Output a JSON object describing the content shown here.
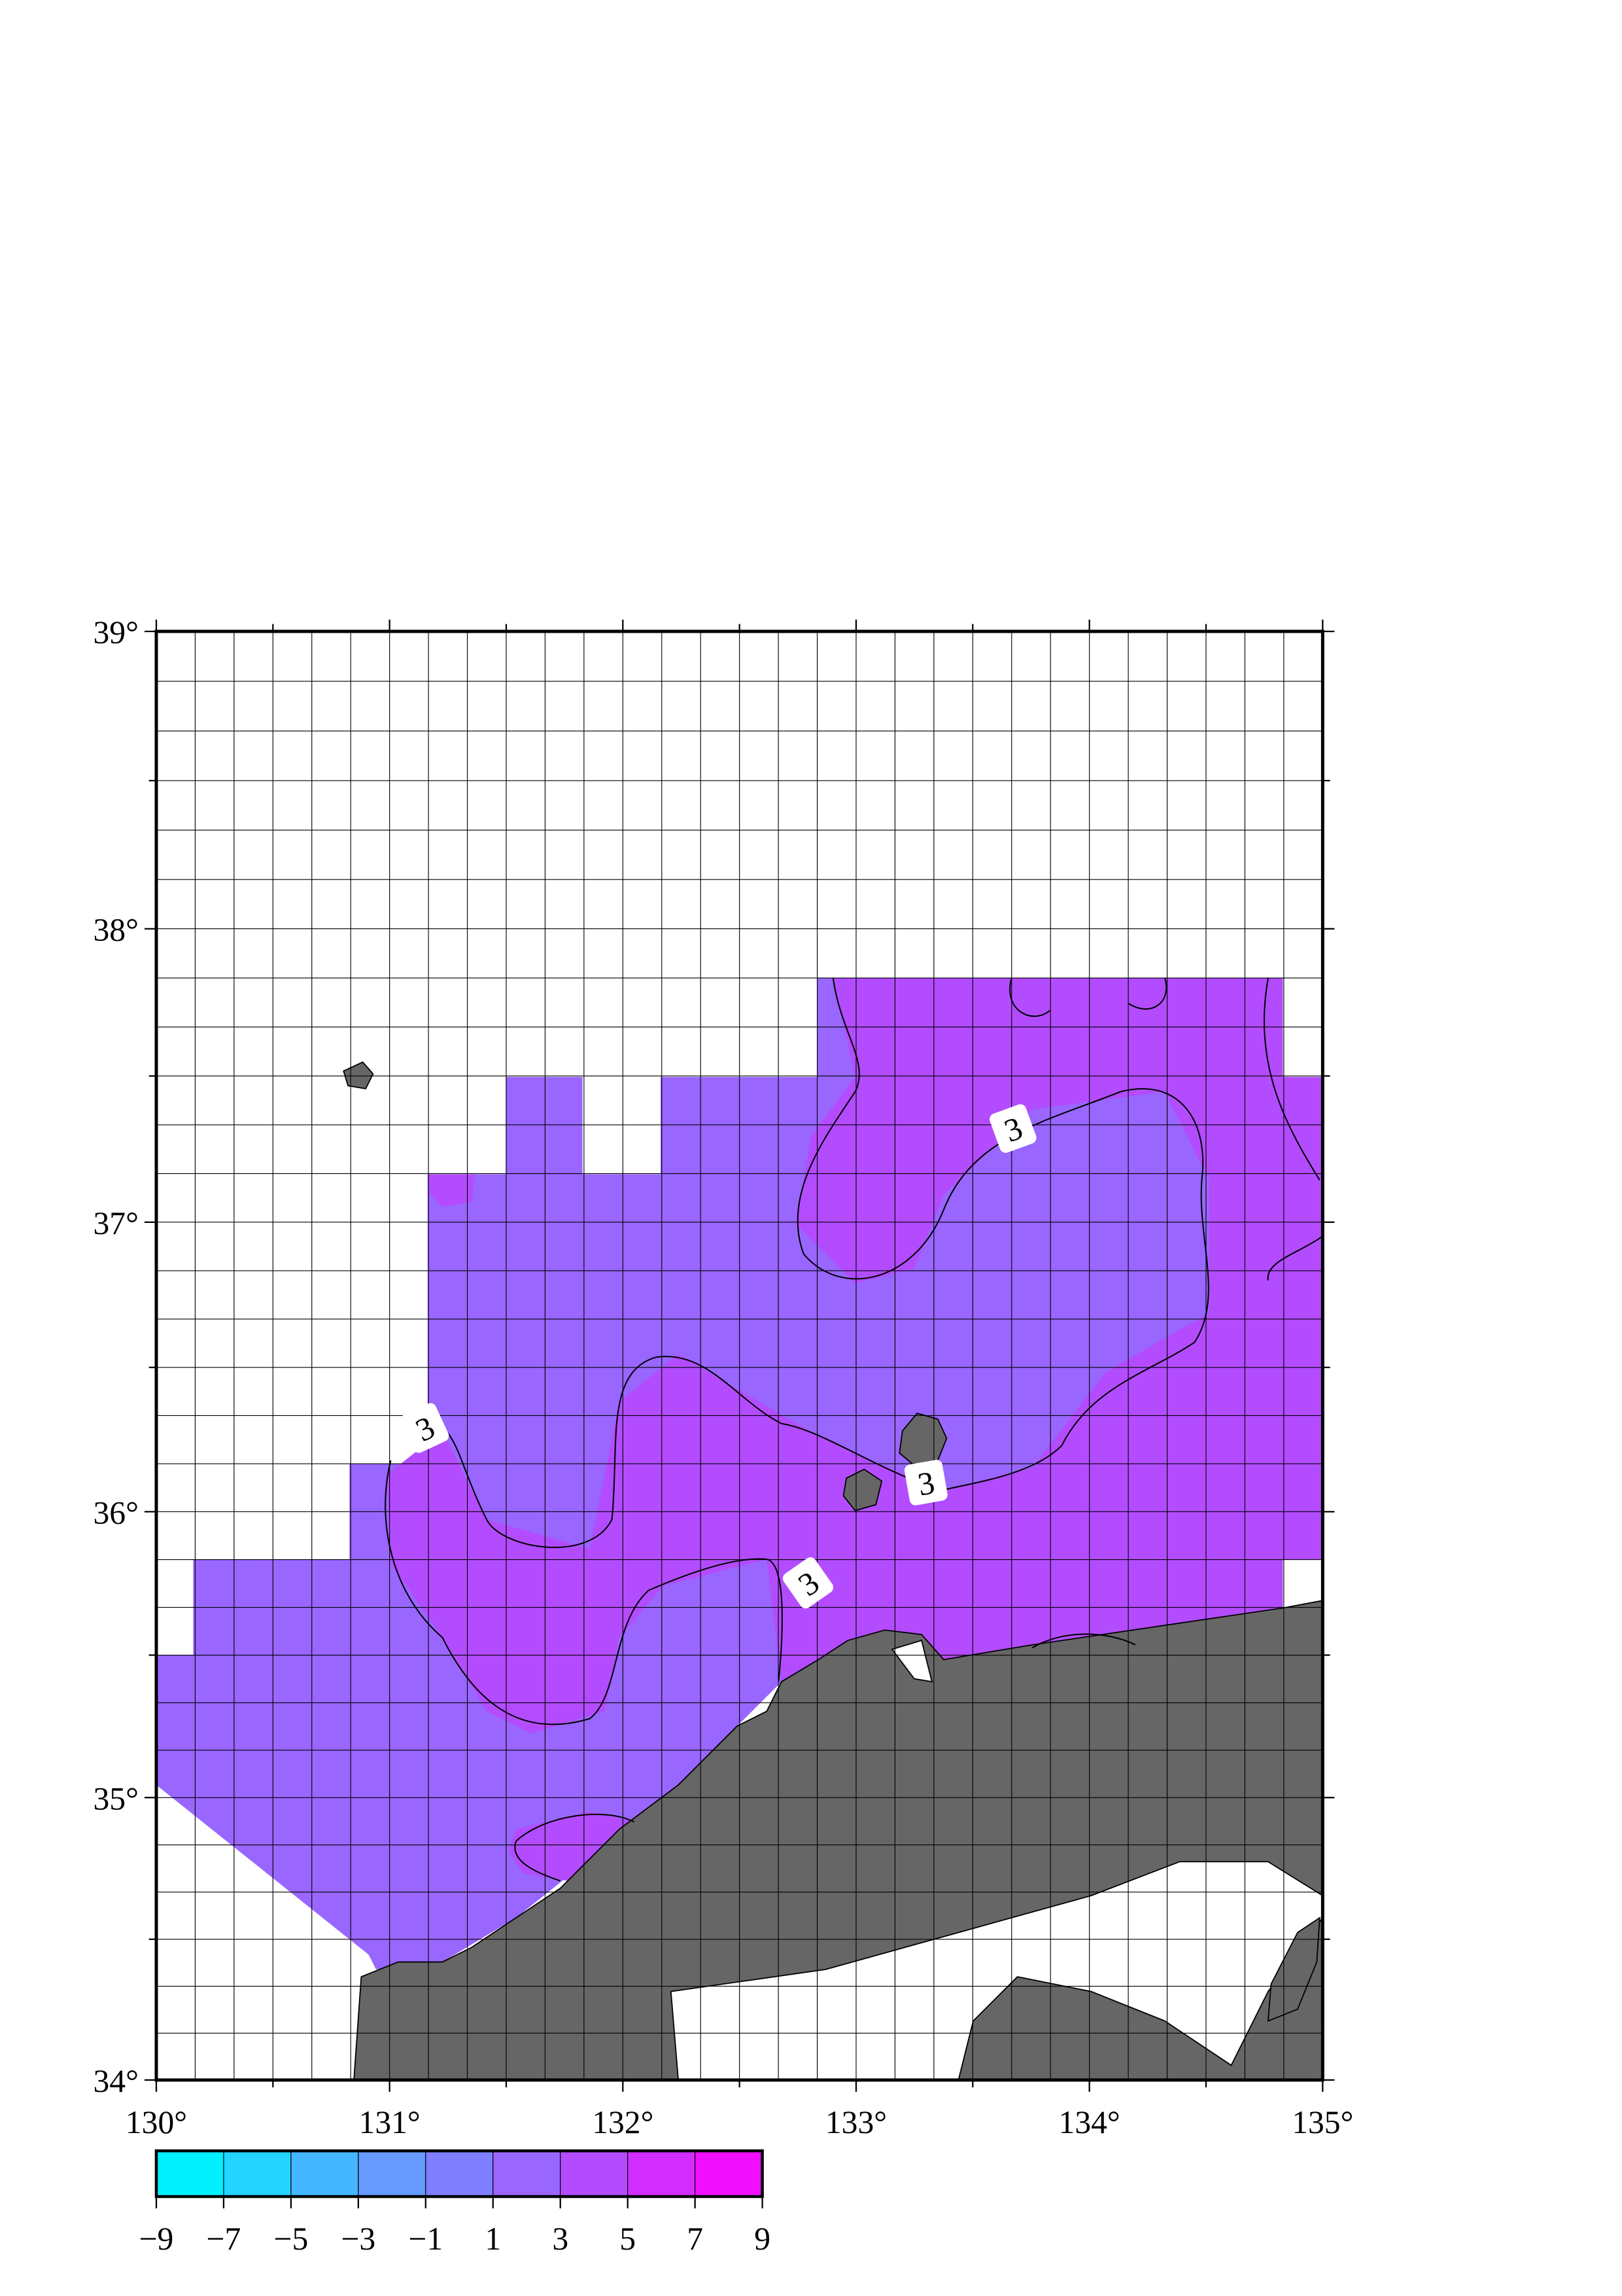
{
  "map": {
    "xlim": [
      130,
      135
    ],
    "ylim": [
      34,
      39
    ],
    "xticks": [
      {
        "value": 130,
        "label": "130°"
      },
      {
        "value": 131,
        "label": "131°"
      },
      {
        "value": 132,
        "label": "132°"
      },
      {
        "value": 133,
        "label": "133°"
      },
      {
        "value": 134,
        "label": "134°"
      },
      {
        "value": 135,
        "label": "135°"
      }
    ],
    "yticks": [
      {
        "value": 34,
        "label": "34°"
      },
      {
        "value": 35,
        "label": "35°"
      },
      {
        "value": 36,
        "label": "36°"
      },
      {
        "value": 37,
        "label": "37°"
      },
      {
        "value": 38,
        "label": "38°"
      },
      {
        "value": 39,
        "label": "39°"
      }
    ],
    "projection": "mercator",
    "grid": true,
    "land_color": "#666666",
    "colorbar": {
      "lim": [
        -9,
        9
      ],
      "ticks": [
        {
          "value": -9,
          "label": "−9"
        },
        {
          "value": -7,
          "label": "−7"
        },
        {
          "value": -5,
          "label": "−5"
        },
        {
          "value": -3,
          "label": "−3"
        },
        {
          "value": -1,
          "label": "−1"
        },
        1,
        3,
        5,
        7,
        9
      ],
      "colors": [
        "#00f0ff",
        "#22d4ff",
        "#44b7ff",
        "#669aff",
        "#7f7fff",
        "#9966ff",
        "#b34cff",
        "#d22dff",
        "#f010ff"
      ]
    },
    "contour_labels": [
      "3",
      "3",
      "3",
      "3"
    ]
  }
}
